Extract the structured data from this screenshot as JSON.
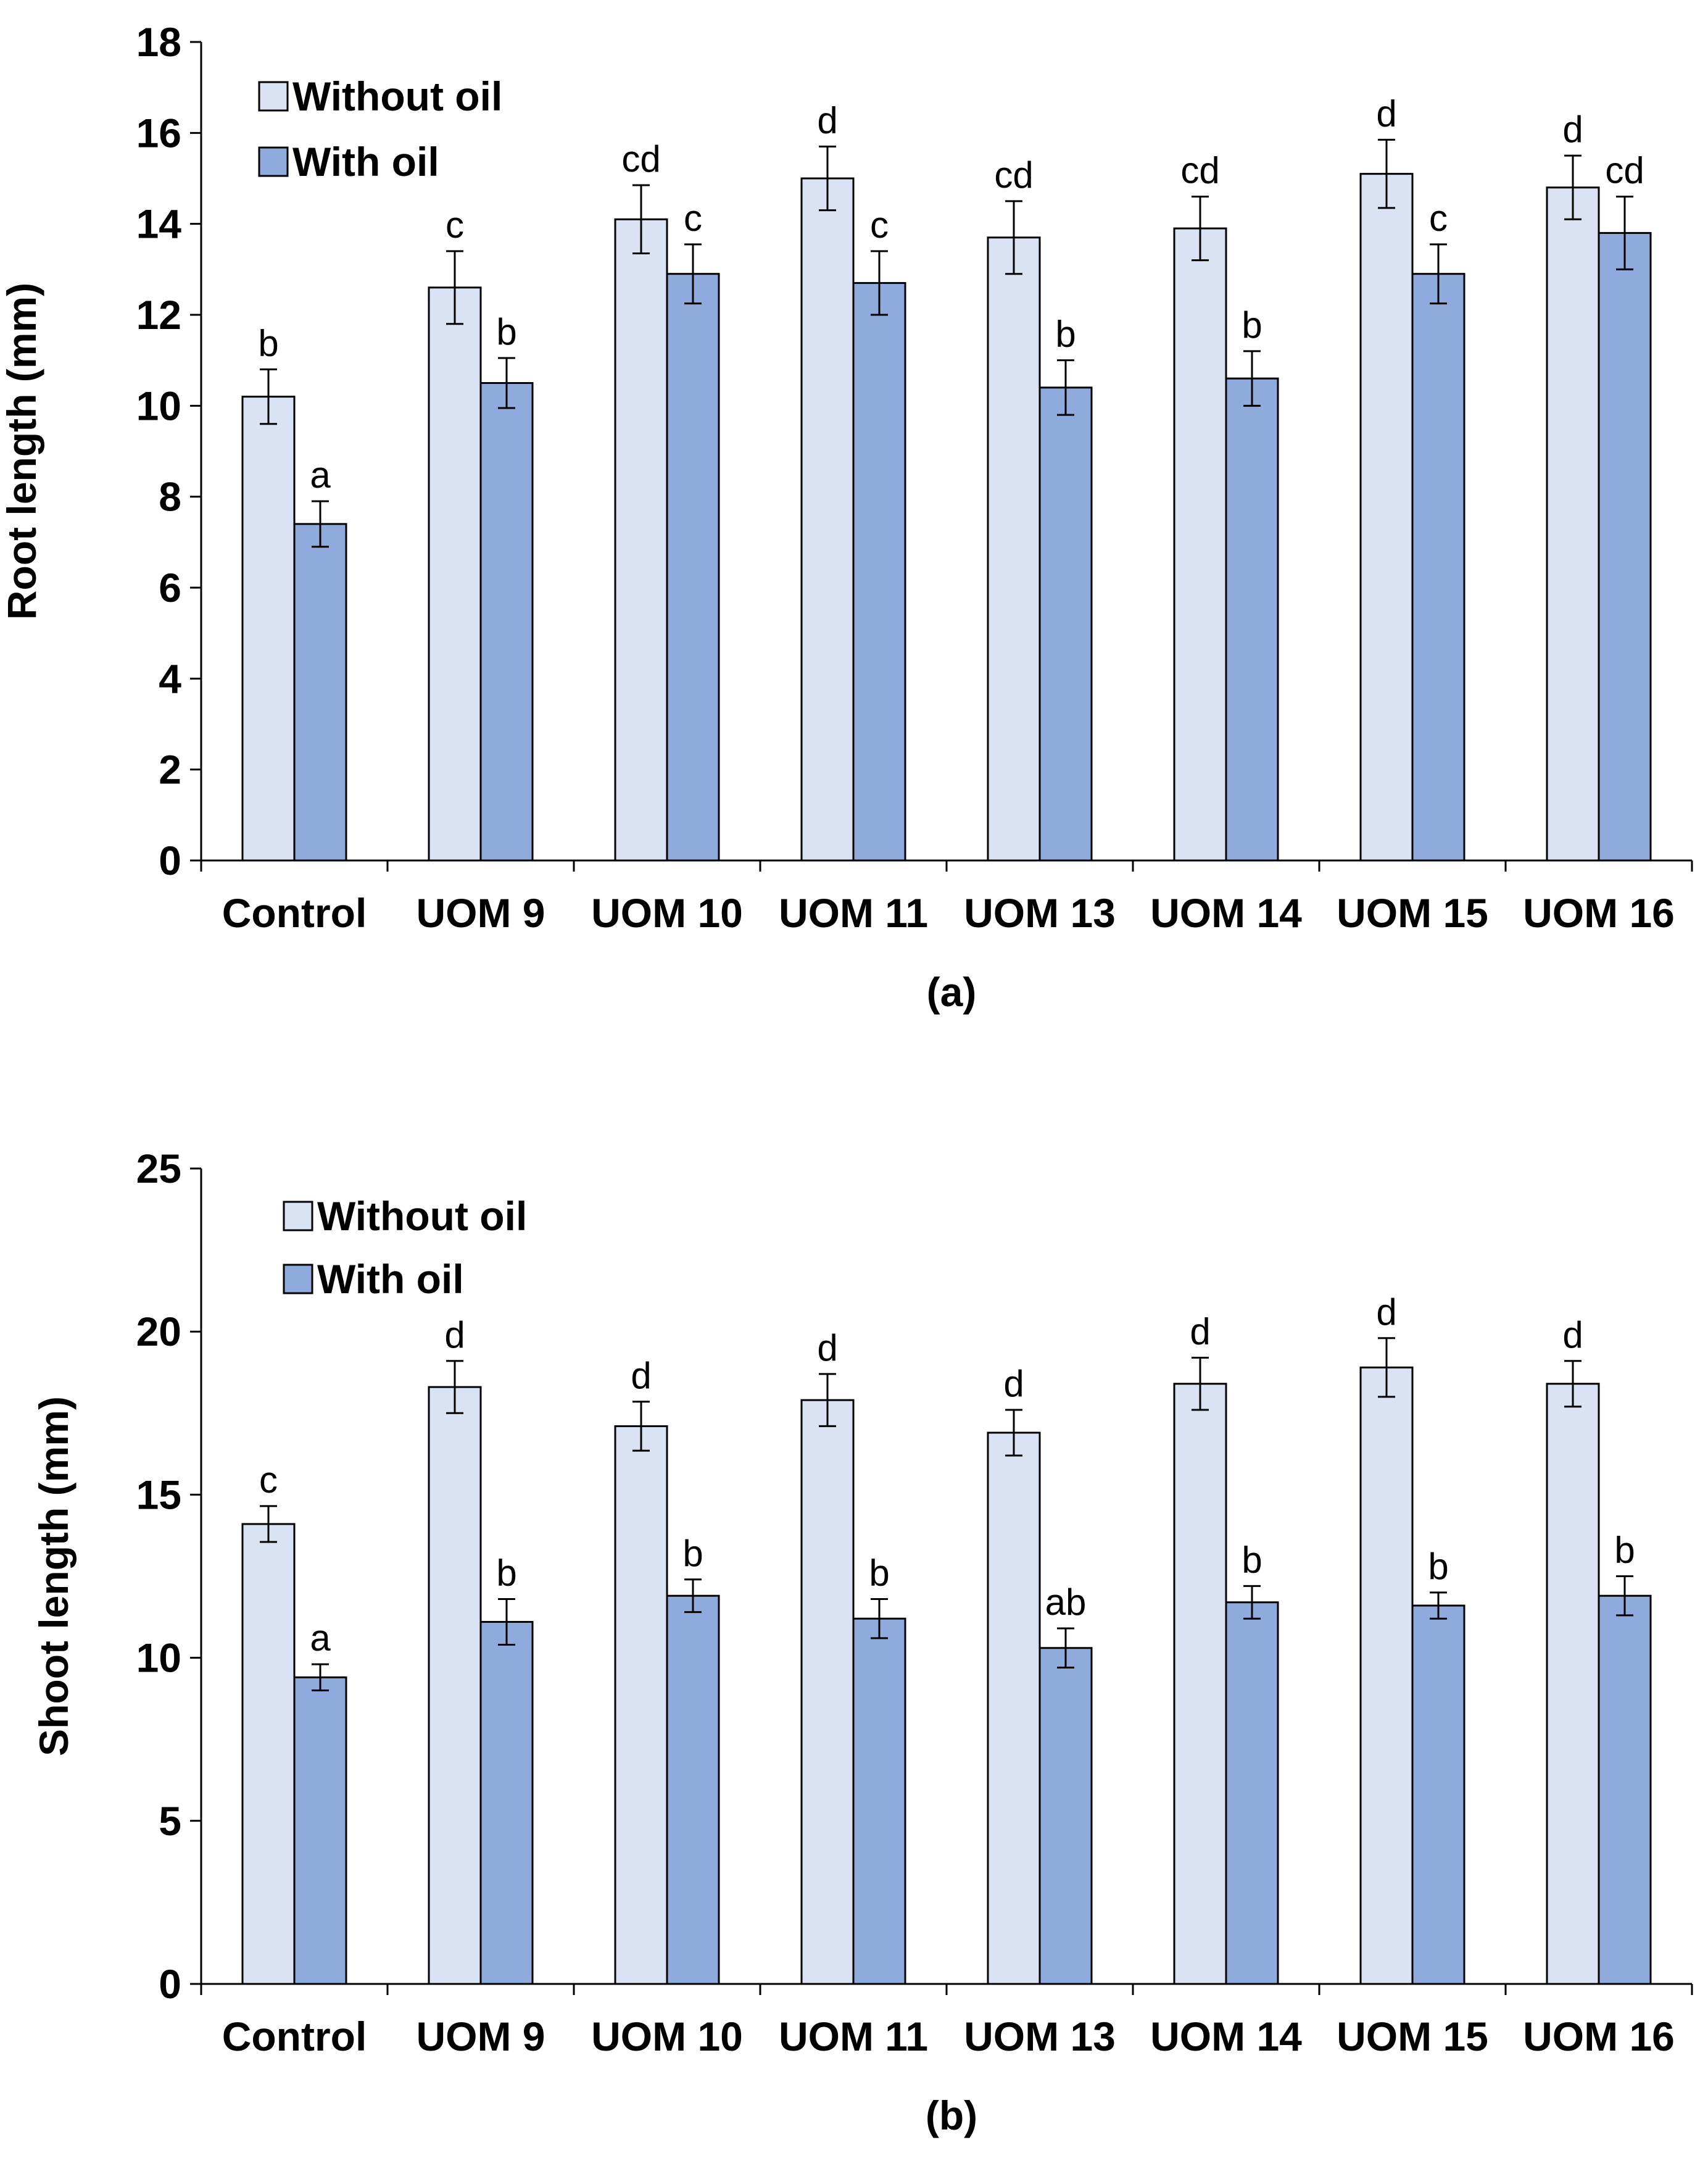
{
  "colors": {
    "without_oil": "#dae3f3",
    "with_oil": "#8faadc",
    "stroke": "#000000"
  },
  "chart_data": [
    {
      "id": "a",
      "type": "bar",
      "panel_label": "(a)",
      "title": "",
      "xlabel": "",
      "ylabel": "Root length (mm)",
      "ylim": [
        0,
        18
      ],
      "yticks": [
        0,
        2,
        4,
        6,
        8,
        10,
        12,
        14,
        16,
        18
      ],
      "legend_position": "top-left",
      "categories": [
        "Control",
        "UOM 9",
        "UOM 10",
        "UOM 11",
        "UOM 13",
        "UOM 14",
        "UOM 15",
        "UOM 16"
      ],
      "series": [
        {
          "name": "Without oil",
          "values": [
            10.2,
            12.6,
            14.1,
            15.0,
            13.7,
            13.9,
            15.1,
            14.8
          ],
          "errors": [
            0.6,
            0.8,
            0.75,
            0.7,
            0.8,
            0.7,
            0.75,
            0.7
          ],
          "labels": [
            "b",
            "c",
            "cd",
            "d",
            "cd",
            "cd",
            "d",
            "d"
          ]
        },
        {
          "name": "With oil",
          "values": [
            7.4,
            10.5,
            12.9,
            12.7,
            10.4,
            10.6,
            12.9,
            13.8
          ],
          "errors": [
            0.5,
            0.55,
            0.65,
            0.7,
            0.6,
            0.6,
            0.65,
            0.8
          ],
          "labels": [
            "a",
            "b",
            "c",
            "c",
            "b",
            "b",
            "c",
            "cd"
          ]
        }
      ]
    },
    {
      "id": "b",
      "type": "bar",
      "panel_label": "(b)",
      "title": "",
      "xlabel": "",
      "ylabel": "Shoot length (mm)",
      "ylim": [
        0,
        25
      ],
      "yticks": [
        0,
        5,
        10,
        15,
        20,
        25
      ],
      "legend_position": "top-left",
      "categories": [
        "Control",
        "UOM 9",
        "UOM 10",
        "UOM 11",
        "UOM 13",
        "UOM 14",
        "UOM 15",
        "UOM 16"
      ],
      "series": [
        {
          "name": "Without oil",
          "values": [
            14.1,
            18.3,
            17.1,
            17.9,
            16.9,
            18.4,
            18.9,
            18.4
          ],
          "errors": [
            0.55,
            0.8,
            0.75,
            0.8,
            0.7,
            0.8,
            0.9,
            0.7
          ],
          "labels": [
            "c",
            "d",
            "d",
            "d",
            "d",
            "d",
            "d",
            "d"
          ]
        },
        {
          "name": "With oil",
          "values": [
            9.4,
            11.1,
            11.9,
            11.2,
            10.3,
            11.7,
            11.6,
            11.9
          ],
          "errors": [
            0.4,
            0.7,
            0.5,
            0.6,
            0.6,
            0.5,
            0.4,
            0.6
          ],
          "labels": [
            "a",
            "b",
            "b",
            "b",
            "ab",
            "b",
            "b",
            "b"
          ]
        }
      ]
    }
  ]
}
